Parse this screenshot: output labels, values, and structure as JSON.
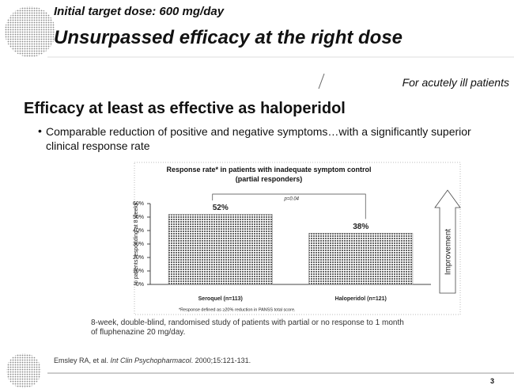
{
  "slide": {
    "kicker": "Initial target dose: 600 mg/day",
    "title": "Unsurpassed efficacy at the right dose",
    "tag": "For acutely ill patients",
    "heading": "Efficacy at least as effective as haloperidol",
    "bullet": "Comparable reduction of positive and negative symptoms…with a significantly superior clinical response rate",
    "caption": "8-week, double-blind, randomised study of patients with partial or no response to 1 month of fluphenazine 20 mg/day.",
    "reference": [
      "Emsley RA, et al. ",
      "Int Clin Psychopharmacol",
      ". 2000;15:121-131."
    ],
    "page_number": "3"
  },
  "chart_data": {
    "type": "bar",
    "title": "Response rate* in patients with inadequate symptom control (partial responders)",
    "y_label": "% patients responding at 8 weeks",
    "categories": [
      "Seroquel (n=113)",
      "Haloperidol (n=121)"
    ],
    "values": [
      52,
      38
    ],
    "value_labels": [
      "52%",
      "38%"
    ],
    "color": "#9a9a9a",
    "ylim": [
      0,
      60
    ],
    "yticks": [
      {
        "value": 0,
        "label": "0%"
      },
      {
        "value": 10,
        "label": "10%"
      },
      {
        "value": 20,
        "label": "20%"
      },
      {
        "value": 30,
        "label": "30%"
      },
      {
        "value": 40,
        "label": "40%"
      },
      {
        "value": 50,
        "label": "50%"
      },
      {
        "value": 60,
        "label": "60%"
      }
    ],
    "annotations": [
      "p=0.04",
      "Improvement"
    ],
    "footnote": "*Response defined as ≥20% reduction in PANSS total score."
  }
}
